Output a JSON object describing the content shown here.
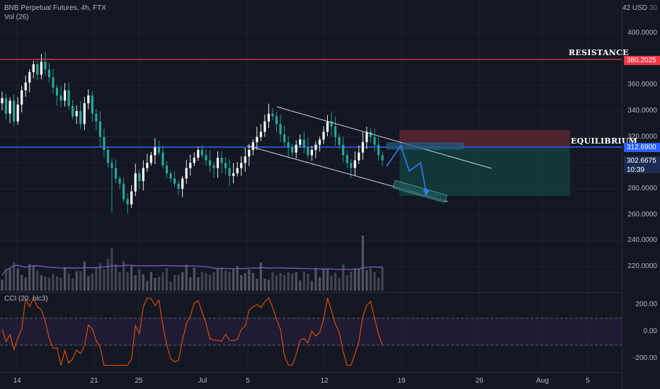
{
  "header": {
    "symbol_line": "BNB Perpetual Futures, 4h, FTX",
    "volume_line": "Vol (26)",
    "cci_line": "CCI (20, hlc3)"
  },
  "price_axis": {
    "currency_label": "42 USD",
    "currency_suffix": "30",
    "ticks": [
      "400.0000",
      "380.0000",
      "360.0000",
      "340.0000",
      "320.0000",
      "300.0000",
      "280.0000",
      "260.0000",
      "240.0000",
      "220.0000"
    ]
  },
  "cci_axis": {
    "ticks": [
      "200.00",
      "0.00",
      "-200.00"
    ]
  },
  "time_axis": {
    "ticks": [
      "14",
      "21",
      "25",
      "Jul",
      "5",
      "12",
      "19",
      "26",
      "Aug",
      "5"
    ]
  },
  "annotations": {
    "resistance": "RESISTANCE",
    "equilibrium": "EQUILIBRIUM"
  },
  "price_tags": {
    "resistance": "380.2025",
    "equilibrium": "312.6900",
    "current_price": "302.6675",
    "countdown": "10:39"
  },
  "colors": {
    "background": "#131722",
    "up_candle": "#ffffff",
    "down_candle": "#26a69a",
    "resistance_line": "#f23645",
    "equilibrium_line": "#2962ff",
    "volume_ma": "#7e57c2",
    "cci_line": "#e65100",
    "stop_zone": "#5b2630",
    "target_zone": "#123b3b"
  },
  "chart_data": {
    "type": "candlestick",
    "symbol": "BNB Perpetual Futures",
    "interval": "4h",
    "exchange": "FTX",
    "y_range": [
      205,
      420
    ],
    "price_levels": {
      "resistance": 380.2025,
      "equilibrium": 312.69,
      "current": 302.6675
    },
    "close_series": [
      350,
      338,
      348,
      332,
      345,
      356,
      362,
      370,
      376,
      368,
      378,
      372,
      366,
      358,
      352,
      348,
      356,
      344,
      336,
      340,
      330,
      346,
      352,
      338,
      332,
      320,
      310,
      300,
      296,
      288,
      284,
      272,
      268,
      278,
      292,
      286,
      296,
      300,
      306,
      312,
      308,
      298,
      292,
      288,
      284,
      280,
      288,
      296,
      300,
      304,
      310,
      306,
      302,
      298,
      296,
      304,
      300,
      296,
      290,
      292,
      296,
      300,
      305,
      310,
      316,
      320,
      324,
      332,
      338,
      336,
      330,
      322,
      316,
      312,
      308,
      314,
      318,
      312,
      306,
      310,
      314,
      318,
      324,
      332,
      328,
      320,
      314,
      306,
      300,
      296,
      302,
      308,
      316,
      324,
      320,
      314,
      306,
      302
    ],
    "volume_note": "volume bars with 26-period MA",
    "cci": {
      "period": 20,
      "source": "hlc3",
      "range": [
        -250,
        250
      ],
      "bands": [
        100,
        -100
      ]
    }
  }
}
